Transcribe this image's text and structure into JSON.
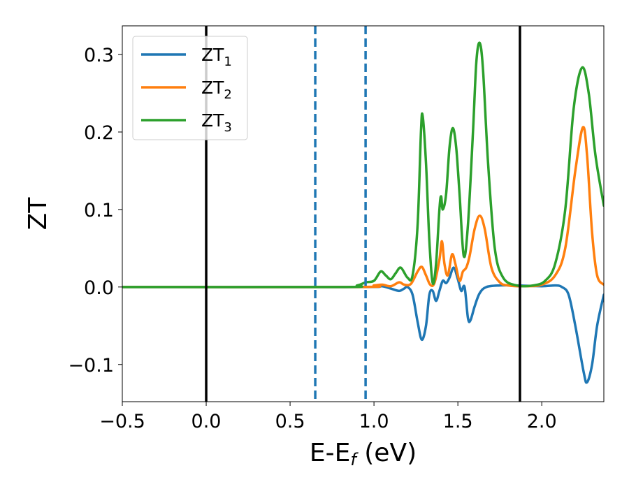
{
  "chart_data": {
    "type": "line",
    "xlabel": "E-E",
    "xlabel_sub": "f",
    "xlabel_unit": " (eV)",
    "ylabel": "ZT",
    "xlim": [
      -0.5,
      2.37
    ],
    "ylim": [
      -0.148,
      0.337
    ],
    "x_ticks": [
      -0.5,
      0.0,
      0.5,
      1.0,
      1.5,
      2.0
    ],
    "x_tick_labels": [
      "−0.5",
      "0.0",
      "0.5",
      "1.0",
      "1.5",
      "2.0"
    ],
    "y_ticks": [
      -0.1,
      0.0,
      0.1,
      0.2,
      0.3
    ],
    "y_tick_labels": [
      "−0.1",
      "0.0",
      "0.1",
      "0.2",
      "0.3"
    ],
    "grid": false,
    "legend_position": "top-left",
    "vertical_lines": [
      {
        "x": 0.0,
        "style": "solid",
        "color": "#000000"
      },
      {
        "x": 0.65,
        "style": "dashed",
        "color": "#1f77b4"
      },
      {
        "x": 0.95,
        "style": "dashed",
        "color": "#1f77b4"
      },
      {
        "x": 1.87,
        "style": "solid",
        "color": "#000000"
      }
    ],
    "series": [
      {
        "name": "ZT",
        "name_sub": "1",
        "color": "#1f77b4",
        "points": [
          [
            -0.5,
            0
          ],
          [
            0.9,
            0
          ],
          [
            1.0,
            0.001
          ],
          [
            1.05,
            0.001
          ],
          [
            1.1,
            -0.002
          ],
          [
            1.15,
            -0.005
          ],
          [
            1.18,
            -0.002
          ],
          [
            1.2,
            0.0
          ],
          [
            1.23,
            -0.01
          ],
          [
            1.26,
            -0.045
          ],
          [
            1.285,
            -0.068
          ],
          [
            1.31,
            -0.05
          ],
          [
            1.33,
            -0.01
          ],
          [
            1.35,
            -0.005
          ],
          [
            1.37,
            -0.018
          ],
          [
            1.39,
            -0.005
          ],
          [
            1.41,
            0.008
          ],
          [
            1.43,
            0.005
          ],
          [
            1.45,
            0.012
          ],
          [
            1.475,
            0.025
          ],
          [
            1.5,
            0.01
          ],
          [
            1.52,
            -0.005
          ],
          [
            1.54,
            0.0
          ],
          [
            1.56,
            -0.04
          ],
          [
            1.575,
            -0.043
          ],
          [
            1.6,
            -0.025
          ],
          [
            1.63,
            -0.008
          ],
          [
            1.67,
            0.0
          ],
          [
            1.75,
            0.002
          ],
          [
            1.85,
            0.002
          ],
          [
            2.0,
            0.001
          ],
          [
            2.08,
            0.002
          ],
          [
            2.12,
            0.0
          ],
          [
            2.16,
            -0.01
          ],
          [
            2.2,
            -0.05
          ],
          [
            2.25,
            -0.11
          ],
          [
            2.27,
            -0.123
          ],
          [
            2.3,
            -0.1
          ],
          [
            2.33,
            -0.05
          ],
          [
            2.37,
            -0.01
          ]
        ]
      },
      {
        "name": "ZT",
        "name_sub": "2",
        "color": "#ff7f0e",
        "points": [
          [
            -0.5,
            0
          ],
          [
            0.9,
            0
          ],
          [
            1.0,
            0.002
          ],
          [
            1.05,
            0.003
          ],
          [
            1.1,
            0.001
          ],
          [
            1.15,
            0.006
          ],
          [
            1.18,
            0.003
          ],
          [
            1.22,
            0.004
          ],
          [
            1.26,
            0.02
          ],
          [
            1.285,
            0.026
          ],
          [
            1.31,
            0.015
          ],
          [
            1.335,
            0.003
          ],
          [
            1.36,
            0.005
          ],
          [
            1.39,
            0.035
          ],
          [
            1.405,
            0.059
          ],
          [
            1.42,
            0.03
          ],
          [
            1.44,
            0.015
          ],
          [
            1.465,
            0.042
          ],
          [
            1.485,
            0.03
          ],
          [
            1.51,
            0.008
          ],
          [
            1.53,
            0.02
          ],
          [
            1.55,
            0.025
          ],
          [
            1.57,
            0.04
          ],
          [
            1.6,
            0.075
          ],
          [
            1.63,
            0.092
          ],
          [
            1.66,
            0.075
          ],
          [
            1.7,
            0.025
          ],
          [
            1.75,
            0.006
          ],
          [
            1.8,
            0.002
          ],
          [
            1.9,
            0.001
          ],
          [
            2.0,
            0.003
          ],
          [
            2.08,
            0.015
          ],
          [
            2.14,
            0.05
          ],
          [
            2.2,
            0.15
          ],
          [
            2.245,
            0.206
          ],
          [
            2.27,
            0.17
          ],
          [
            2.3,
            0.07
          ],
          [
            2.33,
            0.015
          ],
          [
            2.37,
            0.003
          ]
        ]
      },
      {
        "name": "ZT",
        "name_sub": "3",
        "color": "#2ca02c",
        "points": [
          [
            -0.5,
            0
          ],
          [
            0.8,
            0
          ],
          [
            0.9,
            0.002
          ],
          [
            0.95,
            0.006
          ],
          [
            1.0,
            0.008
          ],
          [
            1.04,
            0.02
          ],
          [
            1.07,
            0.015
          ],
          [
            1.1,
            0.01
          ],
          [
            1.13,
            0.018
          ],
          [
            1.16,
            0.025
          ],
          [
            1.2,
            0.012
          ],
          [
            1.23,
            0.015
          ],
          [
            1.26,
            0.08
          ],
          [
            1.28,
            0.2
          ],
          [
            1.29,
            0.221
          ],
          [
            1.31,
            0.16
          ],
          [
            1.33,
            0.06
          ],
          [
            1.35,
            0.005
          ],
          [
            1.37,
            0.03
          ],
          [
            1.39,
            0.1
          ],
          [
            1.4,
            0.117
          ],
          [
            1.41,
            0.1
          ],
          [
            1.43,
            0.12
          ],
          [
            1.45,
            0.18
          ],
          [
            1.47,
            0.205
          ],
          [
            1.49,
            0.18
          ],
          [
            1.51,
            0.12
          ],
          [
            1.535,
            0.04
          ],
          [
            1.56,
            0.08
          ],
          [
            1.59,
            0.2
          ],
          [
            1.61,
            0.29
          ],
          [
            1.63,
            0.315
          ],
          [
            1.65,
            0.28
          ],
          [
            1.68,
            0.16
          ],
          [
            1.72,
            0.05
          ],
          [
            1.77,
            0.012
          ],
          [
            1.85,
            0.002
          ],
          [
            1.95,
            0.002
          ],
          [
            2.02,
            0.008
          ],
          [
            2.08,
            0.03
          ],
          [
            2.14,
            0.1
          ],
          [
            2.19,
            0.23
          ],
          [
            2.24,
            0.283
          ],
          [
            2.28,
            0.25
          ],
          [
            2.32,
            0.17
          ],
          [
            2.37,
            0.105
          ]
        ]
      }
    ]
  }
}
